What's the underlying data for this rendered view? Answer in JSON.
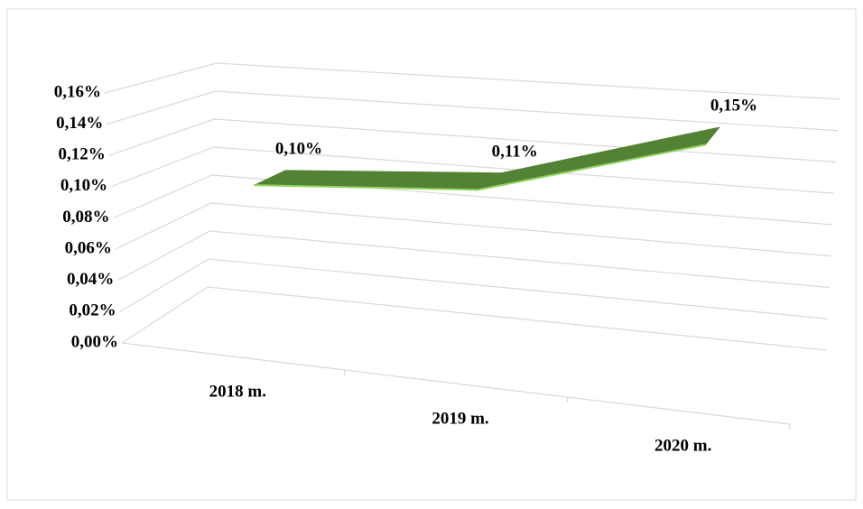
{
  "chart_data": {
    "type": "line3d",
    "categories": [
      "2018 m.",
      "2019 m.",
      "2020 m."
    ],
    "values": [
      0.1,
      0.11,
      0.15
    ],
    "value_labels": [
      "0,10%",
      "0,11%",
      "0,15%"
    ],
    "color": "#548235",
    "ylim": [
      0,
      0.16
    ],
    "yticks": [
      {
        "value": 0,
        "label": "0,00%"
      },
      {
        "value": 0.02,
        "label": "0,02%"
      },
      {
        "value": 0.04,
        "label": "0,04%"
      },
      {
        "value": 0.06,
        "label": "0,06%"
      },
      {
        "value": 0.08,
        "label": "0,08%"
      },
      {
        "value": 0.1,
        "label": "0,10%"
      },
      {
        "value": 0.12,
        "label": "0,12%"
      },
      {
        "value": 0.14,
        "label": "0,14%"
      },
      {
        "value": 0.16,
        "label": "0,16%"
      }
    ],
    "grid": true
  }
}
